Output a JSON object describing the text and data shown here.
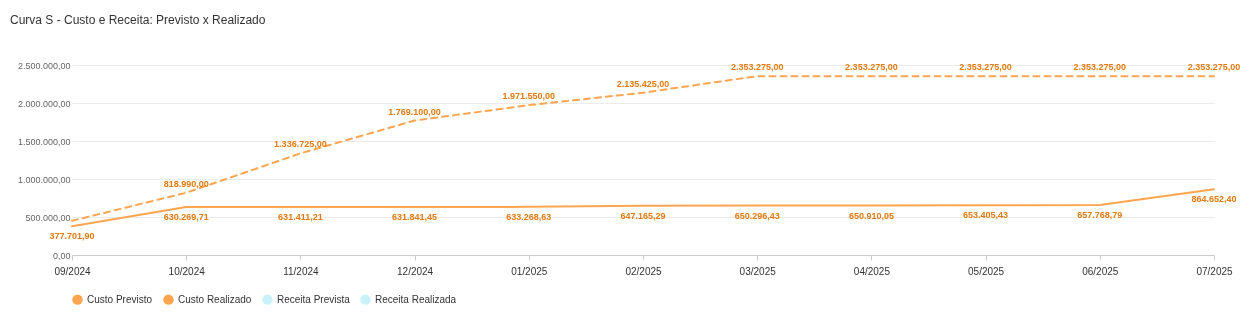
{
  "chart_data": {
    "type": "line",
    "title": "Curva S - Custo e Receita: Previsto x Realizado",
    "categories": [
      "09/2024",
      "10/2024",
      "11/2024",
      "12/2024",
      "01/2025",
      "02/2025",
      "03/2025",
      "04/2025",
      "05/2025",
      "06/2025",
      "07/2025"
    ],
    "series": [
      {
        "name": "Custo Previsto",
        "color": "#ffa54f",
        "line_style": "dashed",
        "values": [
          450000,
          818990,
          1336725,
          1769100,
          1971550,
          2135425,
          2353275,
          2353275,
          2353275,
          2353275,
          2353275
        ],
        "value_labels": [
          null,
          "818.990,00",
          "1.336.725,00",
          "1.769.100,00",
          "1.971.550,00",
          "2.135.425,00",
          "2.353.275,00",
          "2.353.275,00",
          "2.353.275,00",
          "2.353.275,00",
          "2.353.275,00"
        ]
      },
      {
        "name": "Custo Realizado",
        "color": "#ffa54f",
        "line_style": "solid",
        "values": [
          377701.9,
          630269.71,
          631411.21,
          631841.45,
          633268.63,
          647165.29,
          650296.43,
          650910.05,
          653405.43,
          657768.79,
          864652.4
        ],
        "value_labels": [
          "377.701,90",
          "630.269,71",
          "631.411,21",
          "631.841,45",
          "633.268,63",
          "647.165,29",
          "650.296,43",
          "650.910,05",
          "653.405,43",
          "657.768,79",
          "864.652,40"
        ]
      },
      {
        "name": "Receita Prevista",
        "color": "#c8f2f8",
        "line_style": "solid",
        "values": [
          null,
          null,
          null,
          null,
          null,
          null,
          null,
          null,
          null,
          null,
          null
        ]
      },
      {
        "name": "Receita Realizada",
        "color": "#c8f2f8",
        "line_style": "solid",
        "values": [
          null,
          null,
          null,
          null,
          null,
          null,
          null,
          null,
          null,
          null,
          null
        ]
      }
    ],
    "ylim": [
      0,
      2500000
    ],
    "yticks": [
      {
        "value": 0,
        "label": "0,00"
      },
      {
        "value": 500000,
        "label": "500.000,00"
      },
      {
        "value": 1000000,
        "label": "1.000.000,00"
      },
      {
        "value": 1500000,
        "label": "1.500.000,00"
      },
      {
        "value": 2000000,
        "label": "2.000.000,00"
      },
      {
        "value": 2500000,
        "label": "2.500.000,00"
      }
    ],
    "grid": "y",
    "legend": "bottom",
    "marker": "none"
  }
}
